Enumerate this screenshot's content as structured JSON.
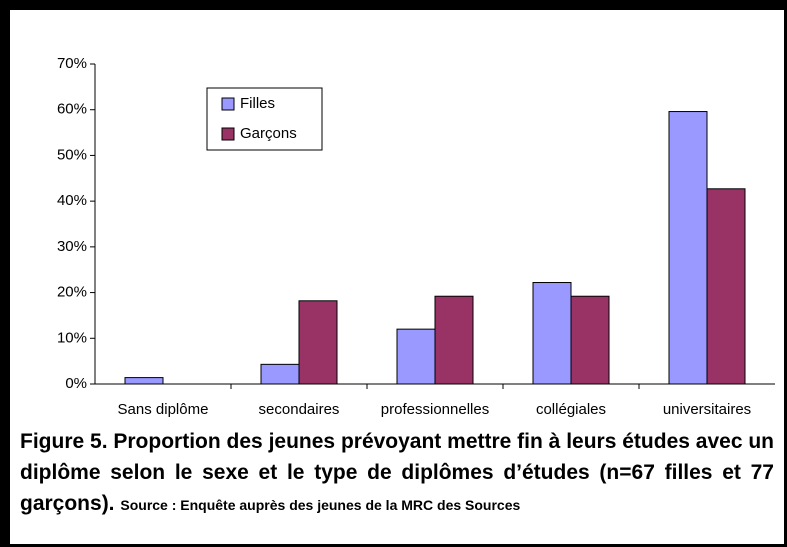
{
  "chart_data": {
    "type": "bar",
    "categories": [
      "Sans diplôme",
      "secondaires",
      "professionnelles",
      "collégiales",
      "universitaires"
    ],
    "series": [
      {
        "name": "Filles",
        "color": "#9999ff",
        "values": [
          1.4,
          4.3,
          12,
          22.2,
          59.6
        ]
      },
      {
        "name": "Garçons",
        "color": "#993366",
        "values": [
          0,
          18.2,
          19.2,
          19.2,
          42.7
        ]
      }
    ],
    "ylim": [
      0,
      70
    ],
    "yticks": [
      {
        "value": 0,
        "label": "0%"
      },
      {
        "value": 10,
        "label": "10%"
      },
      {
        "value": 20,
        "label": "20%"
      },
      {
        "value": 30,
        "label": "30%"
      },
      {
        "value": 40,
        "label": "40%"
      },
      {
        "value": 50,
        "label": "50%"
      },
      {
        "value": 60,
        "label": "60%"
      },
      {
        "value": 70,
        "label": "70%"
      }
    ],
    "legend": "upper left",
    "caption": "Figure 5. Proportion des jeunes prévoyant mettre fin à leurs études avec un diplôme selon le sexe et le type de diplômes d’études (n=67 filles et 77 garçons).",
    "source": "Source : Enquête auprès des jeunes de la MRC des Sources"
  }
}
